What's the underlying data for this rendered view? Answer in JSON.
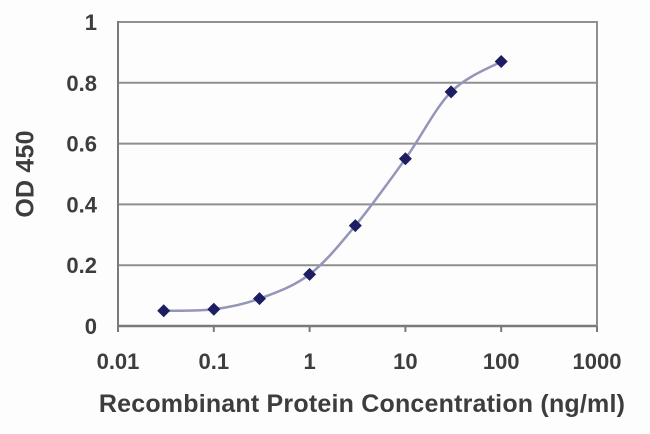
{
  "chart_data": {
    "type": "line",
    "title": "",
    "xlabel": "Recombinant Protein Concentration (ng/ml)",
    "ylabel": "OD 450",
    "x_scale": "log",
    "y_scale": "linear",
    "xlim": [
      0.01,
      1000
    ],
    "ylim": [
      0,
      1
    ],
    "x_ticks": [
      0.01,
      0.1,
      1,
      10,
      100,
      1000
    ],
    "x_tick_labels": [
      "0.01",
      "0.1",
      "1",
      "10",
      "100",
      "1000"
    ],
    "y_ticks": [
      0,
      0.2,
      0.4,
      0.6,
      0.8,
      1
    ],
    "y_tick_labels": [
      "0",
      "0.2",
      "0.4",
      "0.6",
      "0.8",
      "1"
    ],
    "grid": "horizontal-only",
    "legend": "none",
    "series": [
      {
        "name": "OD 450",
        "x": [
          0.03,
          0.1,
          0.3,
          1,
          3,
          10,
          30,
          100
        ],
        "y": [
          0.05,
          0.055,
          0.09,
          0.17,
          0.33,
          0.55,
          0.77,
          0.87
        ],
        "marker": "diamond",
        "line_style": "smooth"
      }
    ],
    "colors": {
      "line": "#9595ba",
      "marker": "#1d1d62",
      "grid": "#8f8f8f",
      "axis": "#7a7a7a",
      "text": "#3d3d3d",
      "background": "#fdfdfd"
    }
  }
}
